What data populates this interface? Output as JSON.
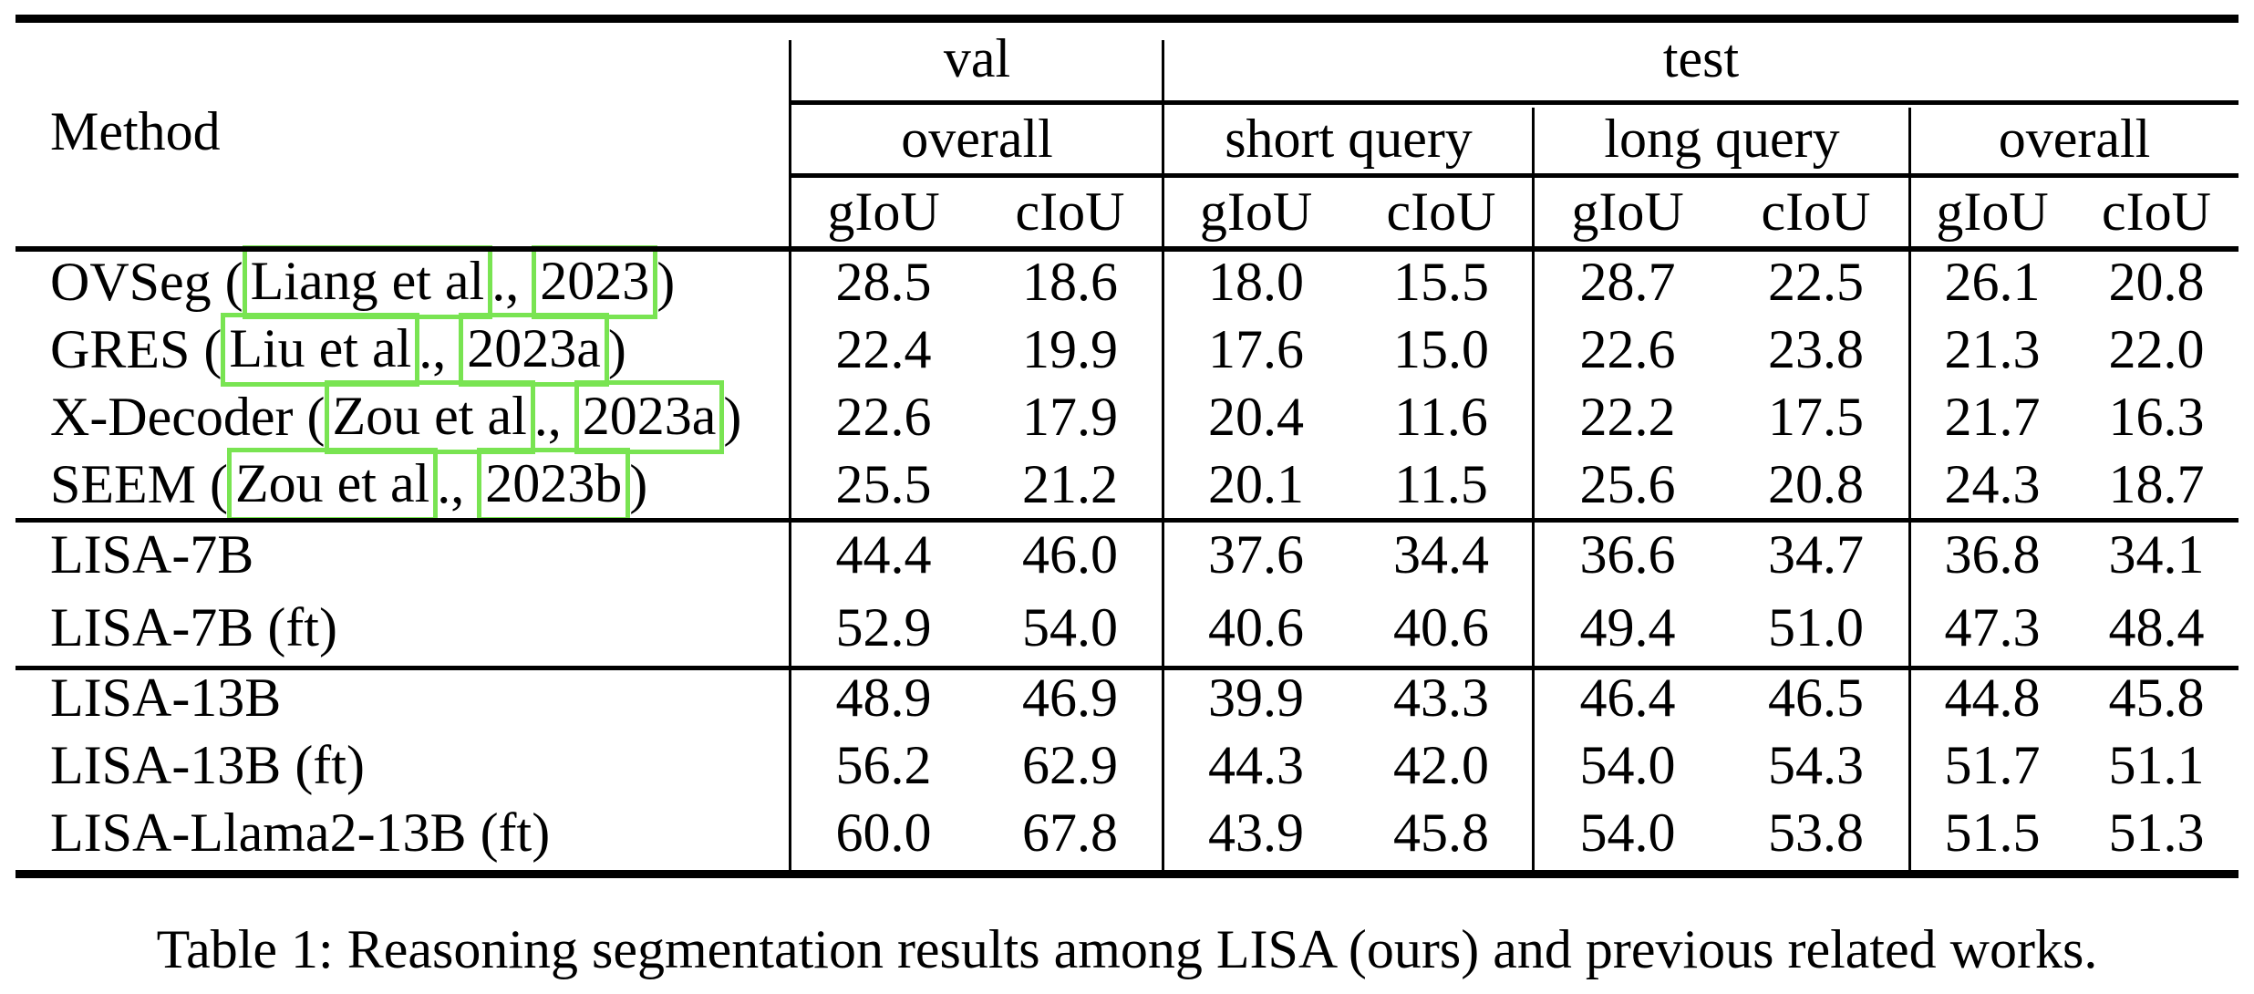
{
  "header": {
    "method": "Method",
    "top_groups": [
      {
        "label": "val"
      },
      {
        "label": "test"
      }
    ],
    "sub_groups": [
      {
        "label": "overall"
      },
      {
        "label": "short query"
      },
      {
        "label": "long query"
      },
      {
        "label": "overall"
      }
    ],
    "metric_pair": [
      "gIoU",
      "cIoU"
    ]
  },
  "groups": [
    {
      "rows": [
        {
          "method": [
            {
              "t": "OVSeg ("
            },
            {
              "t": "Liang et al",
              "cite": true
            },
            {
              "t": "., "
            },
            {
              "t": "2023",
              "cite": true
            },
            {
              "t": ")"
            }
          ],
          "values": [
            "28.5",
            "18.6",
            "18.0",
            "15.5",
            "28.7",
            "22.5",
            "26.1",
            "20.8"
          ]
        },
        {
          "method": [
            {
              "t": "GRES ("
            },
            {
              "t": "Liu et al",
              "cite": true
            },
            {
              "t": "., "
            },
            {
              "t": "2023a",
              "cite": true
            },
            {
              "t": ")"
            }
          ],
          "values": [
            "22.4",
            "19.9",
            "17.6",
            "15.0",
            "22.6",
            "23.8",
            "21.3",
            "22.0"
          ]
        },
        {
          "method": [
            {
              "t": "X-Decoder ("
            },
            {
              "t": "Zou et al",
              "cite": true
            },
            {
              "t": "., "
            },
            {
              "t": "2023a",
              "cite": true
            },
            {
              "t": ")"
            }
          ],
          "values": [
            "22.6",
            "17.9",
            "20.4",
            "11.6",
            "22.2",
            "17.5",
            "21.7",
            "16.3"
          ]
        },
        {
          "method": [
            {
              "t": "SEEM ("
            },
            {
              "t": "Zou et al",
              "cite": true
            },
            {
              "t": "., "
            },
            {
              "t": "2023b",
              "cite": true
            },
            {
              "t": ")"
            }
          ],
          "values": [
            "25.5",
            "21.2",
            "20.1",
            "11.5",
            "25.6",
            "20.8",
            "24.3",
            "18.7"
          ]
        }
      ]
    },
    {
      "rows": [
        {
          "method": [
            {
              "t": "LISA-7B"
            }
          ],
          "values": [
            "44.4",
            "46.0",
            "37.6",
            "34.4",
            "36.6",
            "34.7",
            "36.8",
            "34.1"
          ]
        },
        {
          "method": [
            {
              "t": "LISA-7B (ft)"
            }
          ],
          "values": [
            "52.9",
            "54.0",
            "40.6",
            "40.6",
            "49.4",
            "51.0",
            "47.3",
            "48.4"
          ]
        }
      ]
    },
    {
      "rows": [
        {
          "method": [
            {
              "t": "LISA-13B"
            }
          ],
          "values": [
            "48.9",
            "46.9",
            "39.9",
            "43.3",
            "46.4",
            "46.5",
            "44.8",
            "45.8"
          ]
        },
        {
          "method": [
            {
              "t": "LISA-13B (ft)"
            }
          ],
          "values": [
            "56.2",
            "62.9",
            "44.3",
            "42.0",
            "54.0",
            "54.3",
            "51.7",
            "51.1"
          ]
        },
        {
          "method": [
            {
              "t": "LISA-Llama2-13B (ft)"
            }
          ],
          "values": [
            "60.0",
            "67.8",
            "43.9",
            "45.8",
            "54.0",
            "53.8",
            "51.5",
            "51.3"
          ]
        }
      ]
    }
  ],
  "caption": "Table 1: Reasoning segmentation results among LISA (ours) and previous related works.",
  "colors": {
    "citation_box": "#79e452",
    "rule": "#000000"
  }
}
